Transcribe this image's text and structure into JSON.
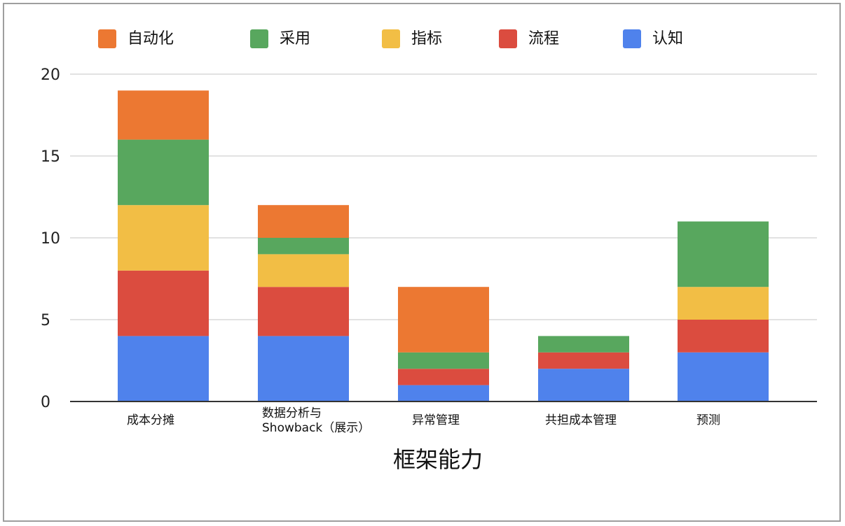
{
  "chart_data": {
    "type": "bar",
    "stacked": true,
    "title": "",
    "xlabel": "框架能力",
    "ylabel": "",
    "ylim": [
      0,
      20
    ],
    "yticks": [
      "0",
      "5",
      "10",
      "15",
      "20"
    ],
    "grid": true,
    "legend_position": "top",
    "categories": [
      [
        "成本分摊"
      ],
      [
        "数据分析与",
        "Showback（展示）"
      ],
      [
        "异常管理"
      ],
      [
        "共担成本管理"
      ],
      [
        "预测"
      ]
    ],
    "series": [
      {
        "name": "认知",
        "color": "#4f82ec",
        "values": [
          4,
          4,
          1,
          2,
          3
        ]
      },
      {
        "name": "流程",
        "color": "#db4c3f",
        "values": [
          4,
          3,
          1,
          1,
          2
        ]
      },
      {
        "name": "指标",
        "color": "#f2be45",
        "values": [
          4,
          2,
          0,
          0,
          2
        ]
      },
      {
        "name": "采用",
        "color": "#58a75e",
        "values": [
          4,
          1,
          1,
          1,
          4
        ]
      },
      {
        "name": "自动化",
        "color": "#ec7832",
        "values": [
          3,
          2,
          4,
          0,
          0
        ]
      }
    ],
    "legend_order": [
      "自动化",
      "采用",
      "指标",
      "流程",
      "认知"
    ]
  }
}
